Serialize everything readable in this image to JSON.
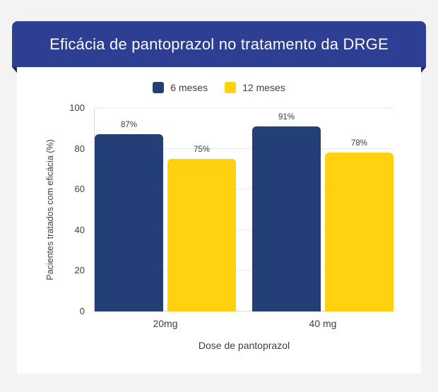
{
  "banner": {
    "title": "Eficácia de pantoprazol no tratamento da DRGE"
  },
  "chart_data": {
    "type": "bar",
    "title": "Eficácia de pantoprazol no tratamento da DRGE",
    "categories": [
      "20mg",
      "40 mg"
    ],
    "series": [
      {
        "name": "6 meses",
        "color": "#243f77",
        "values": [
          87,
          91
        ]
      },
      {
        "name": "12 meses",
        "color": "#ffd10e",
        "values": [
          75,
          78
        ]
      }
    ],
    "bar_value_labels": [
      [
        "87%",
        "91%"
      ],
      [
        "75%",
        "78%"
      ]
    ],
    "xlabel": "Dose de pantoprazol",
    "ylabel": "Pacientes tratados com eficácia (%)",
    "yticks": [
      0,
      20,
      40,
      60,
      80,
      100
    ],
    "ylim": [
      0,
      100
    ],
    "grid": true,
    "legend_position": "top-center"
  },
  "colors": {
    "page_background": "#f3f3f4",
    "banner_background": "#2e3e92",
    "banner_fold": "#1d2a66",
    "series_6_meses": "#243f77",
    "series_12_meses": "#ffd10e",
    "card_background": "#ffffff",
    "gridline": "#ebebeb",
    "text": "#3f3f3f"
  }
}
